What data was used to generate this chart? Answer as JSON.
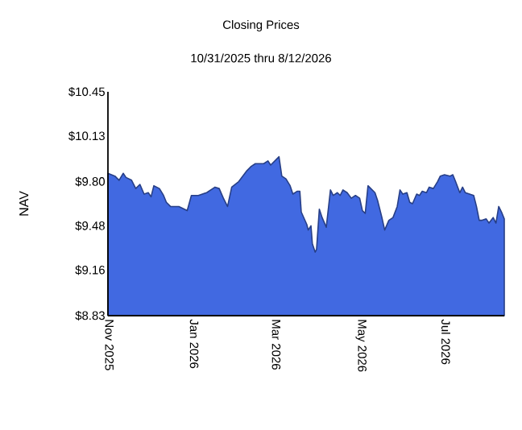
{
  "chart_data": {
    "type": "area",
    "title": "Closing Prices",
    "subtitle": "10/31/2025 thru 8/12/2026",
    "ylabel": "NAV",
    "x": [
      "2025-10-31",
      "2025-11-05",
      "2025-11-08",
      "2025-11-11",
      "2025-11-13",
      "2025-11-17",
      "2025-11-20",
      "2025-11-23",
      "2025-11-26",
      "2025-11-29",
      "2025-12-01",
      "2025-12-03",
      "2025-12-07",
      "2025-12-10",
      "2025-12-12",
      "2025-12-15",
      "2025-12-21",
      "2025-12-27",
      "2025-12-30",
      "2026-01-04",
      "2026-01-10",
      "2026-01-16",
      "2026-01-19",
      "2026-01-22",
      "2026-01-25",
      "2026-01-28",
      "2026-02-02",
      "2026-02-08",
      "2026-02-11",
      "2026-02-14",
      "2026-02-20",
      "2026-02-23",
      "2026-02-25",
      "2026-03-01",
      "2026-03-03",
      "2026-03-05",
      "2026-03-08",
      "2026-03-11",
      "2026-03-13",
      "2026-03-16",
      "2026-03-18",
      "2026-03-19",
      "2026-03-23",
      "2026-03-24",
      "2026-03-26",
      "2026-03-27",
      "2026-03-29",
      "2026-03-30",
      "2026-04-01",
      "2026-04-03",
      "2026-04-06",
      "2026-04-09",
      "2026-04-11",
      "2026-04-14",
      "2026-04-16",
      "2026-04-18",
      "2026-04-21",
      "2026-04-24",
      "2026-04-27",
      "2026-04-30",
      "2026-05-02",
      "2026-05-04",
      "2026-05-06",
      "2026-05-08",
      "2026-05-11",
      "2026-05-13",
      "2026-05-16",
      "2026-05-18",
      "2026-05-21",
      "2026-05-24",
      "2026-05-27",
      "2026-05-29",
      "2026-05-31",
      "2026-06-03",
      "2026-06-05",
      "2026-06-07",
      "2026-06-10",
      "2026-06-12",
      "2026-06-14",
      "2026-06-17",
      "2026-06-19",
      "2026-06-22",
      "2026-06-25",
      "2026-06-27",
      "2026-06-30",
      "2026-07-04",
      "2026-07-06",
      "2026-07-08",
      "2026-07-11",
      "2026-07-13",
      "2026-07-15",
      "2026-07-18",
      "2026-07-21",
      "2026-07-23",
      "2026-07-25",
      "2026-07-27",
      "2026-07-30",
      "2026-08-01",
      "2026-08-04",
      "2026-08-06",
      "2026-08-08",
      "2026-08-10",
      "2026-08-12"
    ],
    "series": [
      {
        "color": "#4169e1",
        "values": [
          9.86,
          9.84,
          9.81,
          9.86,
          9.83,
          9.81,
          9.75,
          9.78,
          9.71,
          9.72,
          9.69,
          9.77,
          9.75,
          9.7,
          9.65,
          9.62,
          9.62,
          9.59,
          9.7,
          9.7,
          9.72,
          9.76,
          9.75,
          9.68,
          9.62,
          9.76,
          9.8,
          9.88,
          9.91,
          9.93,
          9.93,
          9.95,
          9.92,
          9.96,
          9.98,
          9.84,
          9.82,
          9.77,
          9.71,
          9.73,
          9.73,
          9.58,
          9.49,
          9.45,
          9.48,
          9.35,
          9.29,
          9.31,
          9.6,
          9.54,
          9.47,
          9.74,
          9.7,
          9.72,
          9.7,
          9.74,
          9.72,
          9.68,
          9.7,
          9.68,
          9.59,
          9.57,
          9.77,
          9.75,
          9.72,
          9.66,
          9.54,
          9.45,
          9.52,
          9.54,
          9.62,
          9.74,
          9.71,
          9.72,
          9.65,
          9.64,
          9.71,
          9.7,
          9.73,
          9.72,
          9.76,
          9.75,
          9.8,
          9.84,
          9.85,
          9.84,
          9.85,
          9.8,
          9.72,
          9.76,
          9.72,
          9.71,
          9.7,
          9.62,
          9.52,
          9.52,
          9.53,
          9.5,
          9.54,
          9.5,
          9.62,
          9.58,
          9.53
        ]
      }
    ],
    "xlim": [
      "2025-10-31",
      "2026-08-12"
    ],
    "xticks": [
      {
        "value": "2025-11-01",
        "label": "Nov 2025"
      },
      {
        "value": "2026-01-01",
        "label": "Jan 2026"
      },
      {
        "value": "2026-03-01",
        "label": "Mar 2026"
      },
      {
        "value": "2026-05-01",
        "label": "May 2026"
      },
      {
        "value": "2026-07-01",
        "label": "Jul 2026"
      }
    ],
    "ylim": [
      8.83,
      10.45
    ],
    "yticks": [
      {
        "value": 8.83,
        "label": "$8.83"
      },
      {
        "value": 9.16,
        "label": "$9.16"
      },
      {
        "value": 9.48,
        "label": "$9.48"
      },
      {
        "value": 9.8,
        "label": "$9.80"
      },
      {
        "value": 10.13,
        "label": "$10.13"
      },
      {
        "value": 10.45,
        "label": "$10.45"
      }
    ],
    "grid": false
  }
}
